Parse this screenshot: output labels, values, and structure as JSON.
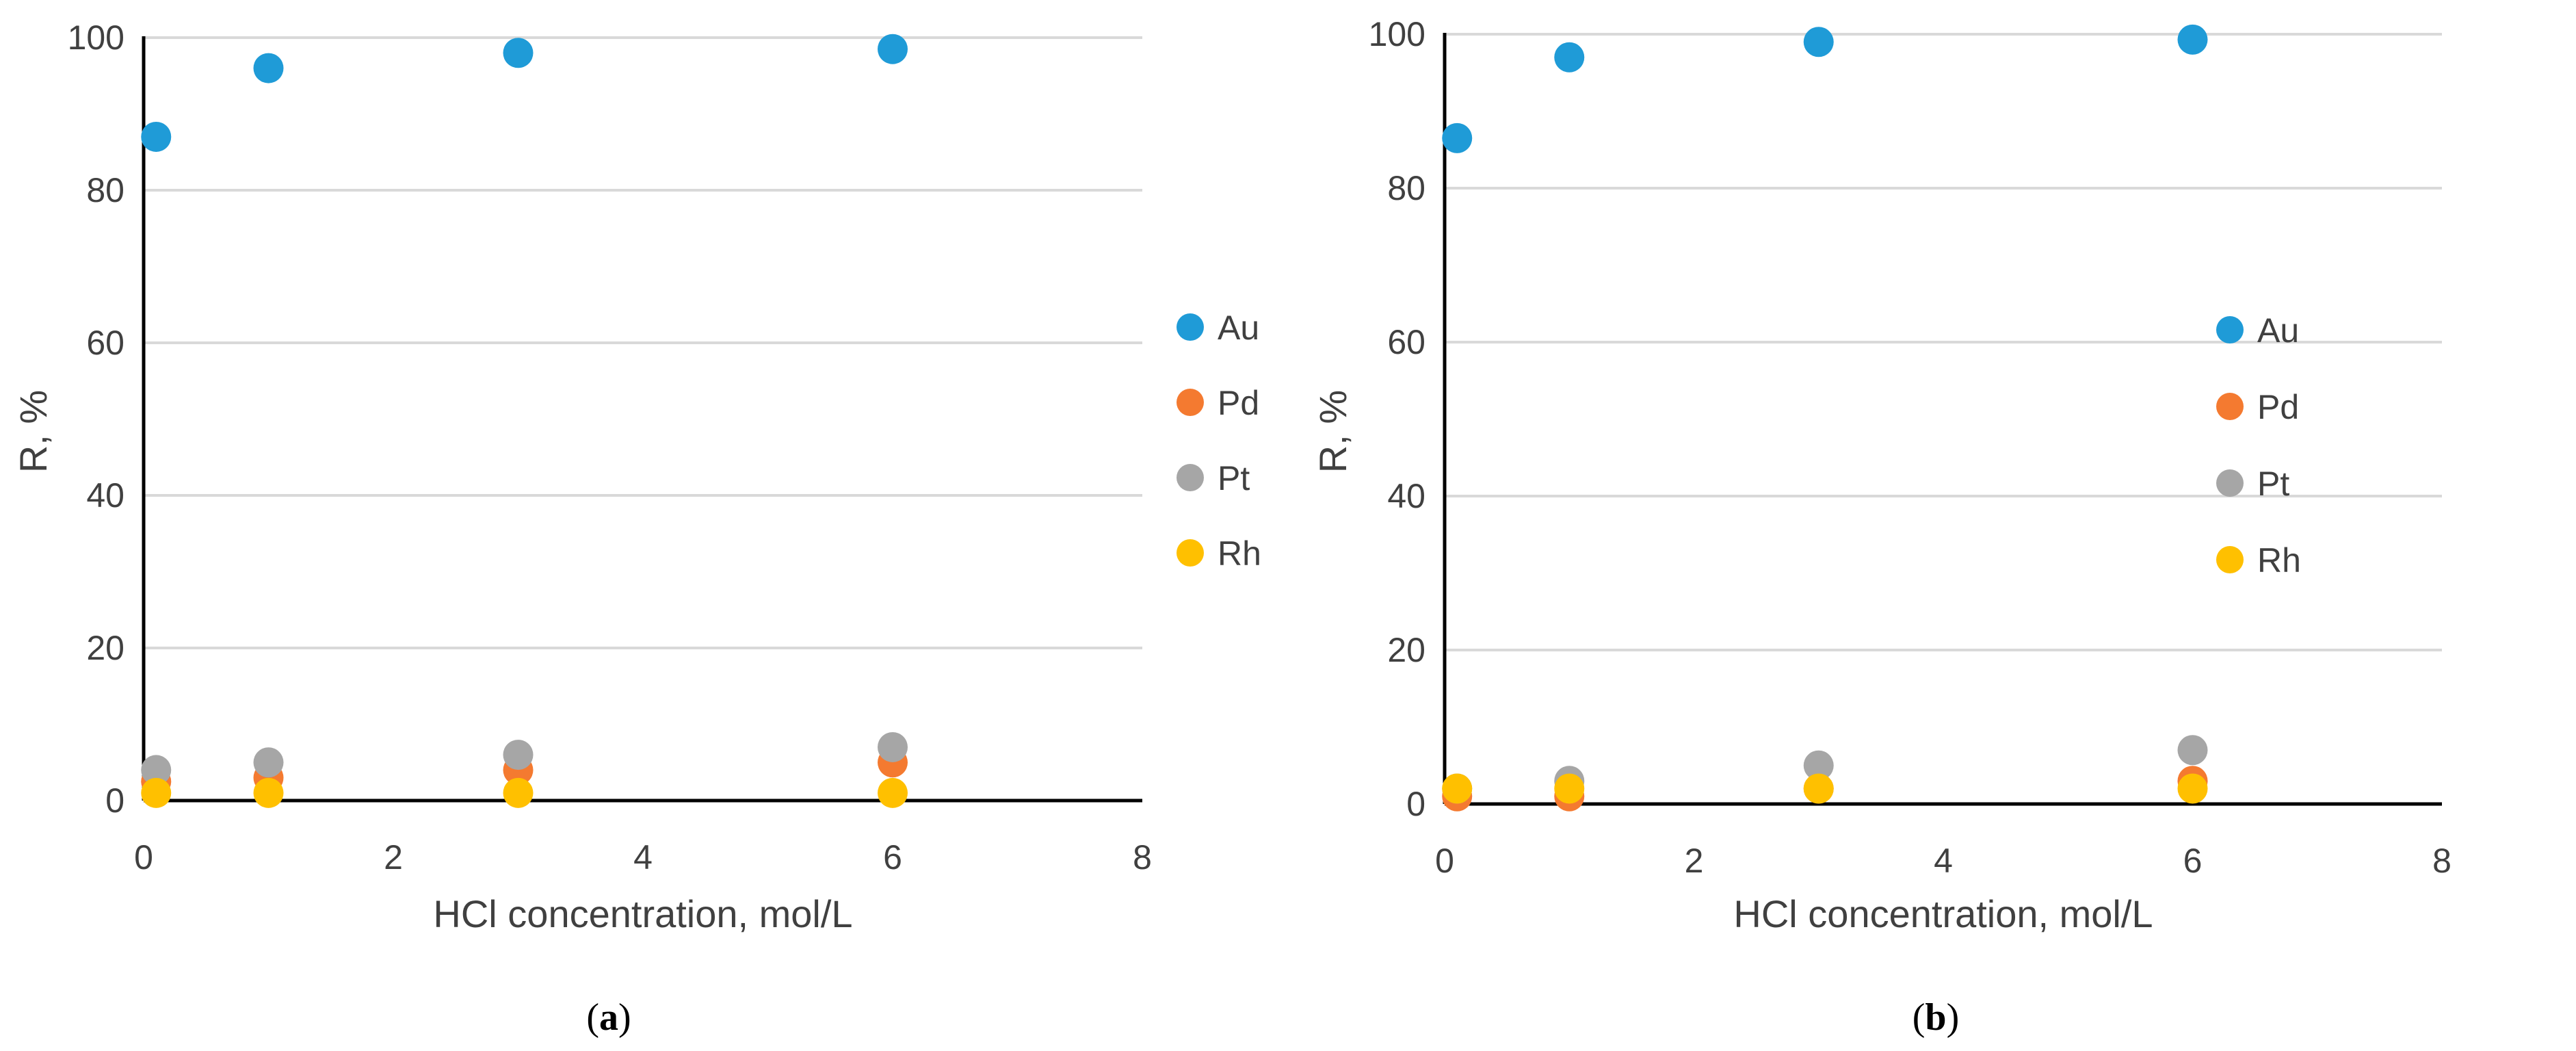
{
  "chart_data": [
    {
      "panel": "a",
      "caption": "a",
      "type": "scatter",
      "xlabel": "HCl concentration, mol/L",
      "ylabel": "R, %",
      "xlim": [
        0,
        8
      ],
      "ylim": [
        0,
        100
      ],
      "xticks": [
        0,
        2,
        4,
        6,
        8
      ],
      "yticks": [
        0,
        20,
        40,
        60,
        80,
        100
      ],
      "grid": true,
      "legend": "right",
      "x": [
        0.1,
        1,
        3,
        6
      ],
      "series": [
        {
          "name": "Au",
          "color": "#1f9bd7",
          "values": [
            87,
            96,
            98,
            98.5
          ]
        },
        {
          "name": "Pd",
          "color": "#f47a30",
          "values": [
            2.5,
            3,
            4,
            5
          ]
        },
        {
          "name": "Pt",
          "color": "#a6a6a6",
          "values": [
            4,
            5,
            6,
            7
          ]
        },
        {
          "name": "Rh",
          "color": "#ffc000",
          "values": [
            1,
            1,
            1,
            1
          ]
        }
      ]
    },
    {
      "panel": "b",
      "caption": "b",
      "type": "scatter",
      "xlabel": "HCl concentration, mol/L",
      "ylabel": "R, %",
      "xlim": [
        0,
        8
      ],
      "ylim": [
        0,
        100
      ],
      "xticks": [
        0,
        2,
        4,
        6,
        8
      ],
      "yticks": [
        0,
        20,
        40,
        60,
        80,
        100
      ],
      "grid": true,
      "legend": "right",
      "x": [
        0.1,
        1,
        3,
        6
      ],
      "series": [
        {
          "name": "Au",
          "color": "#1f9bd7",
          "values": [
            86.5,
            97,
            99,
            99.3
          ]
        },
        {
          "name": "Pd",
          "color": "#f47a30",
          "values": [
            1,
            1,
            2,
            3
          ]
        },
        {
          "name": "Pt",
          "color": "#a6a6a6",
          "values": [
            2,
            3,
            5,
            7
          ]
        },
        {
          "name": "Rh",
          "color": "#ffc000",
          "values": [
            2,
            2,
            2,
            2
          ]
        }
      ]
    }
  ]
}
